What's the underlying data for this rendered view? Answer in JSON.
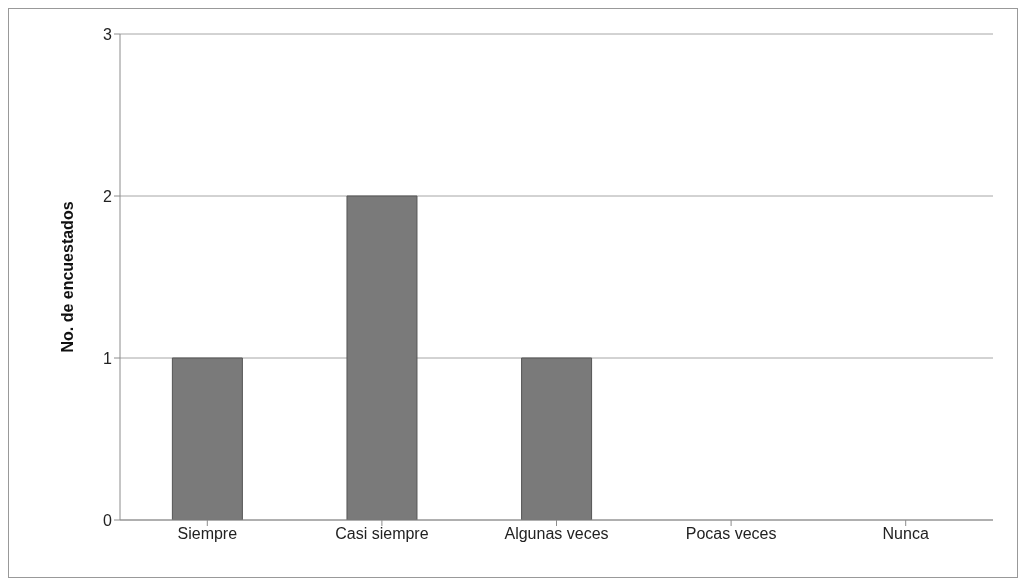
{
  "chart_data": {
    "type": "bar",
    "ylabel": "No. de encuestados",
    "categories": [
      "Siempre",
      "Casi siempre",
      "Algunas veces",
      "Pocas veces",
      "Nunca"
    ],
    "values": [
      1,
      2,
      1,
      0,
      0
    ],
    "color": "#7a7a7a",
    "ylim": [
      0,
      3
    ],
    "yticks": [
      0,
      1,
      2,
      3
    ],
    "grid": "y"
  }
}
